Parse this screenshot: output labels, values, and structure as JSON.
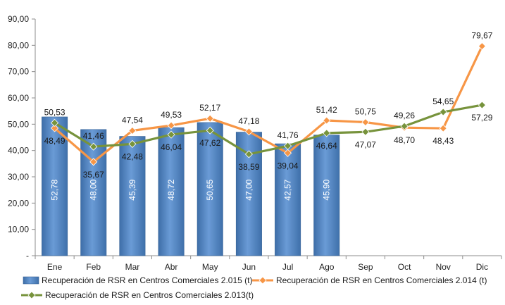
{
  "chart_data": {
    "type": "bar",
    "categories": [
      "Ene",
      "Feb",
      "Mar",
      "Abr",
      "May",
      "Jun",
      "Jul",
      "Ago",
      "Sep",
      "Oct",
      "Nov",
      "Dic"
    ],
    "ylim": [
      0,
      90
    ],
    "yticks": [
      "-",
      "10,00",
      "20,00",
      "30,00",
      "40,00",
      "50,00",
      "60,00",
      "70,00",
      "80,00",
      "90,00"
    ],
    "grid": false,
    "legend_position": "bottom",
    "series": [
      {
        "name": "Recuperación de RSR en Centros Comerciales 2.015 (t)",
        "type": "bar",
        "color": "#4F81BD",
        "values": [
          52.78,
          48.0,
          45.39,
          48.72,
          50.65,
          47.0,
          42.57,
          45.9,
          null,
          null,
          null,
          null
        ],
        "labels": [
          "52,78",
          "48,00",
          "45,39",
          "48,72",
          "50,65",
          "47,00",
          "42,57",
          "45,90",
          "",
          "",
          "",
          ""
        ]
      },
      {
        "name": "Recuperación de RSR en Centros Comerciales 2.014 (t)",
        "type": "line",
        "color": "#F79646",
        "values": [
          48.49,
          35.67,
          47.54,
          49.53,
          52.17,
          47.18,
          39.04,
          51.42,
          50.75,
          48.7,
          48.43,
          79.67
        ],
        "labels": [
          "48,49",
          "35,67",
          "47,54",
          "49,53",
          "52,17",
          "47,18",
          "39,04",
          "51,42",
          "50,75",
          "48,70",
          "48,43",
          "79,67"
        ]
      },
      {
        "name": "Recuperación de RSR en Centros Comerciales 2.013(t)",
        "type": "line",
        "color": "#77933C",
        "values": [
          50.53,
          41.46,
          42.48,
          46.04,
          47.62,
          38.59,
          41.76,
          46.64,
          47.07,
          49.26,
          54.65,
          57.29
        ],
        "labels": [
          "50,53",
          "41,46",
          "42,48",
          "46,04",
          "47,62",
          "38,59",
          "41,76",
          "46,64",
          "47,07",
          "49,26",
          "54,65",
          "57,29"
        ]
      }
    ]
  }
}
